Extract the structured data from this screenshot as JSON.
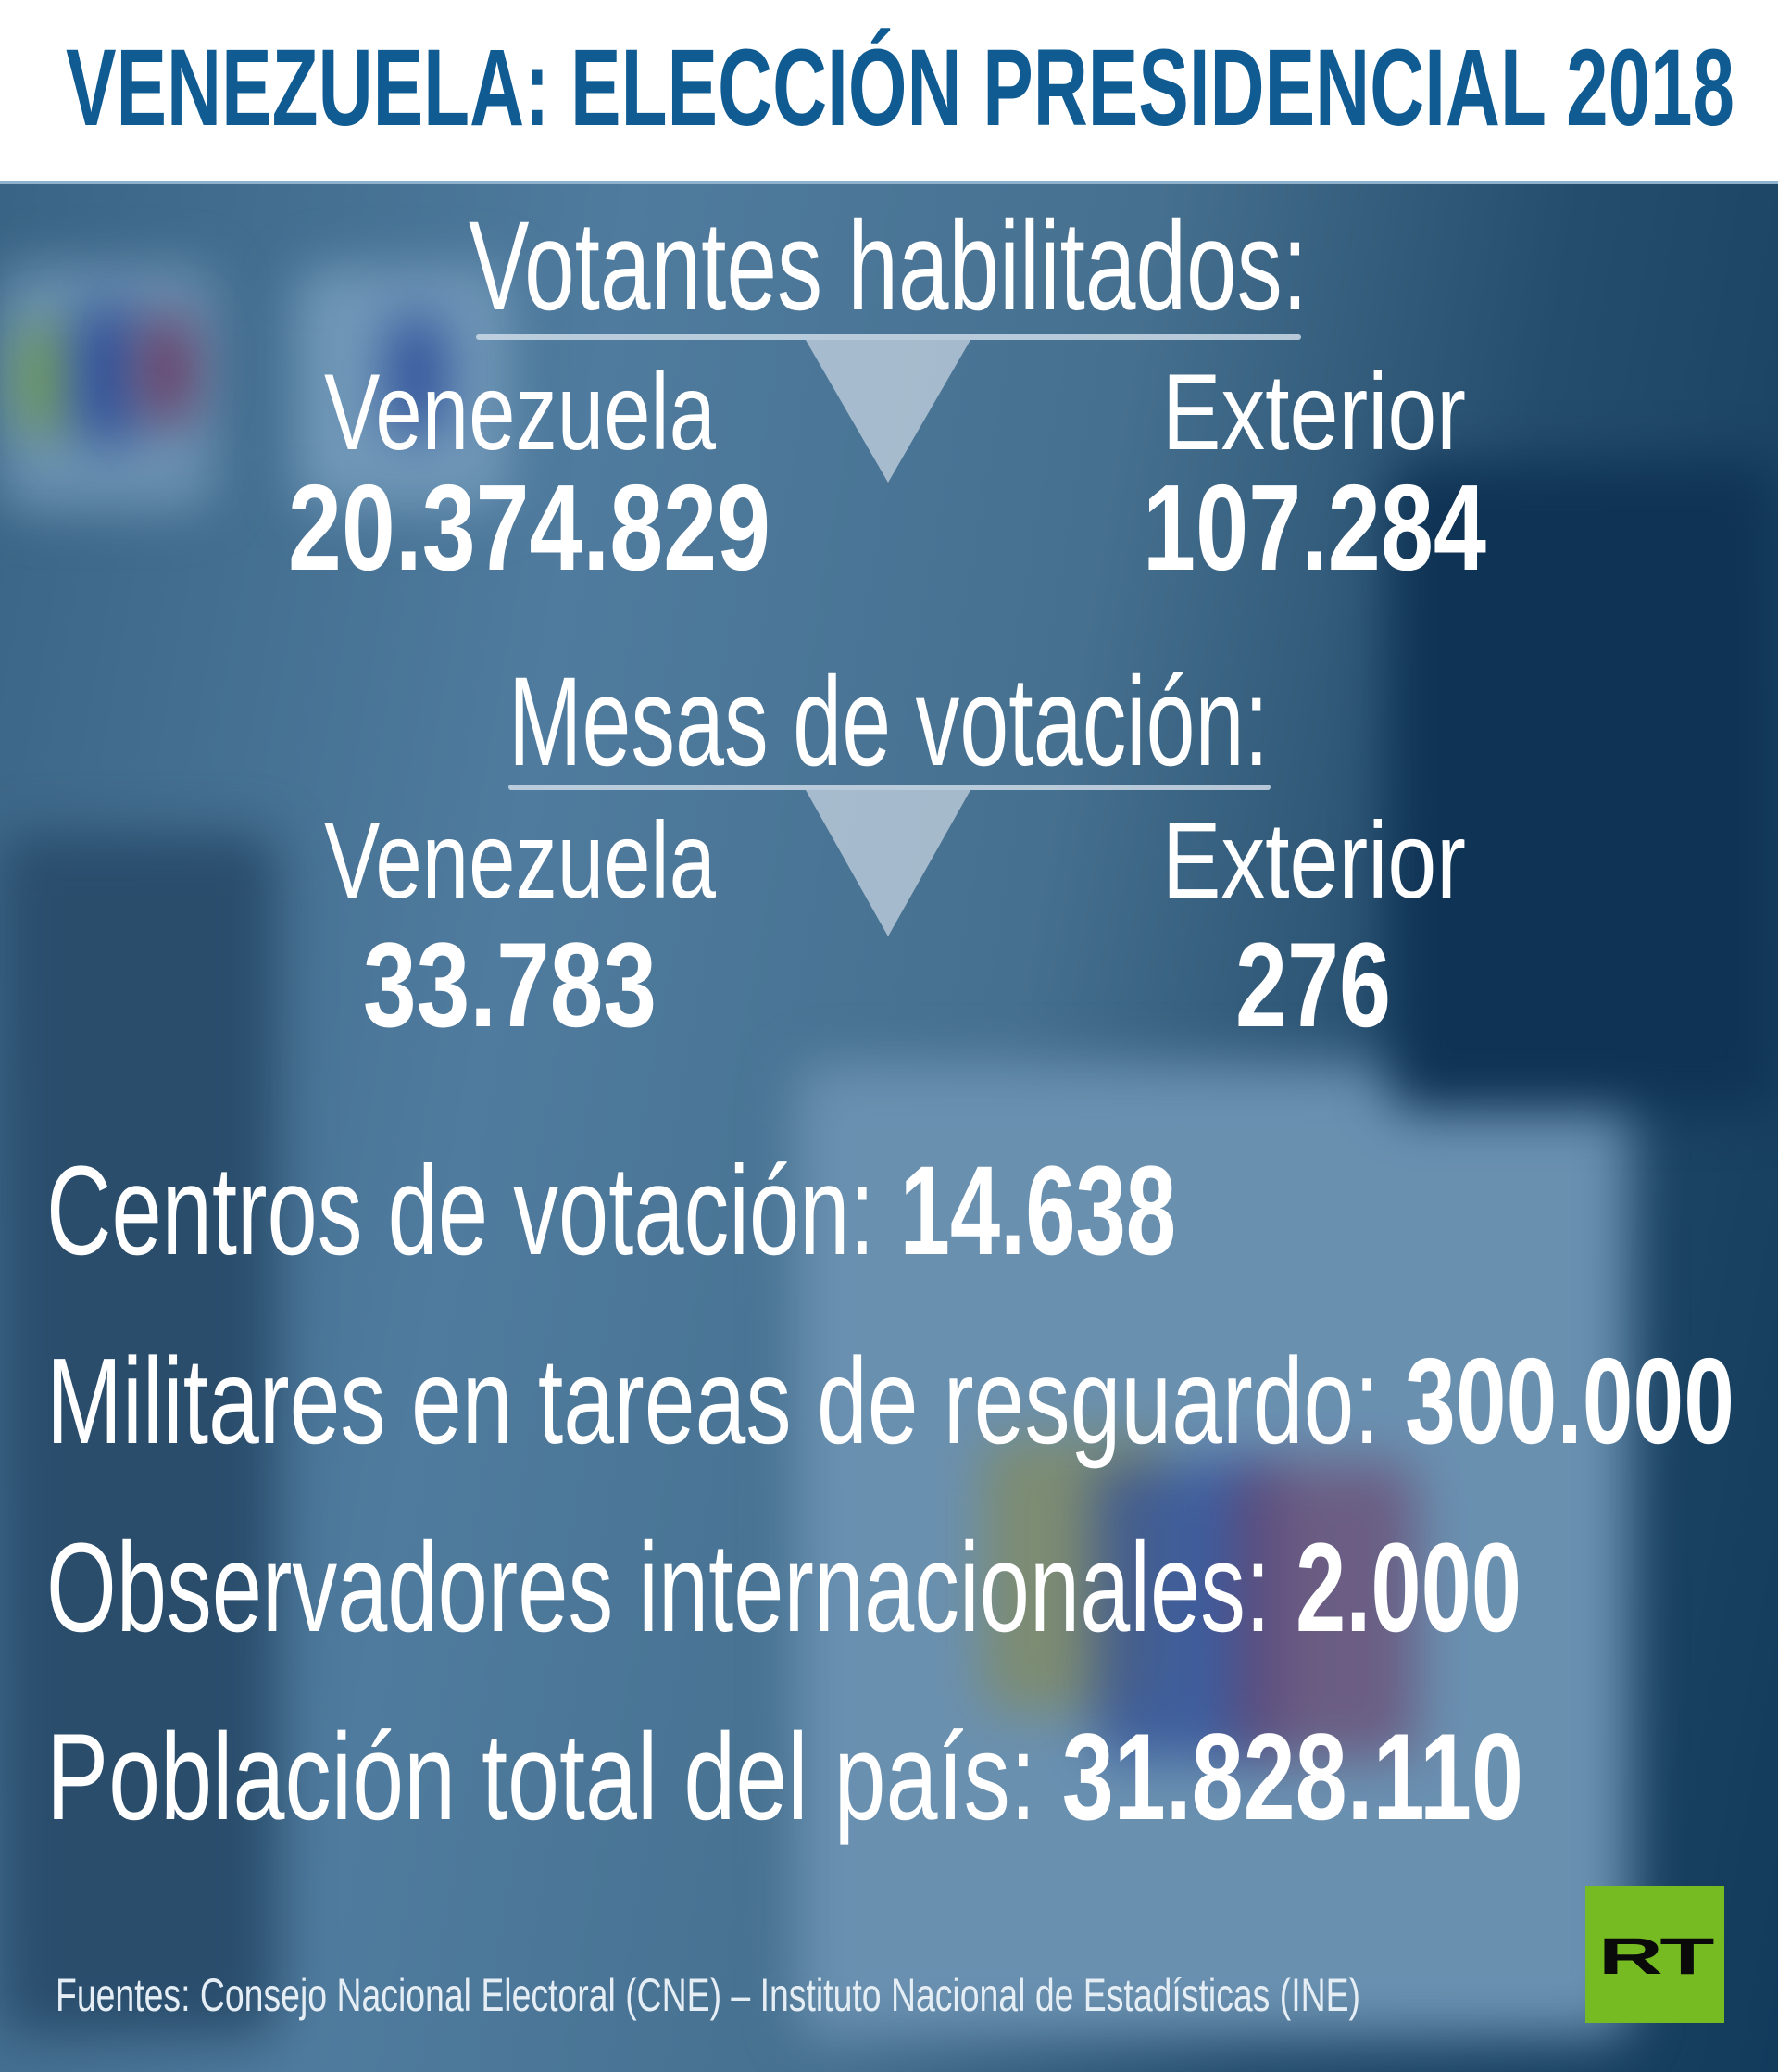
{
  "header": {
    "title": "VENEZUELA: ELECCIÓN PRESIDENCIAL 2018",
    "title_color": "#0f5b92"
  },
  "votantes": {
    "heading": "Votantes habilitados:",
    "venezuela_label": "Venezuela",
    "venezuela_value": "20.374.829",
    "exterior_label": "Exterior",
    "exterior_value": "107.284"
  },
  "mesas": {
    "heading": "Mesas de votación:",
    "venezuela_label": "Venezuela",
    "venezuela_value": "33.783",
    "exterior_label": "Exterior",
    "exterior_value": "276"
  },
  "stats": [
    {
      "label": "Centros de votación: ",
      "value": "14.638"
    },
    {
      "label": "Militares en tareas de resguardo: ",
      "value": "300.000"
    },
    {
      "label": "Observadores internacionales: ",
      "value": "2.000"
    },
    {
      "label": "Población total del país: ",
      "value": "31.828.110"
    }
  ],
  "footer": {
    "sources": "Fuentes: Consejo Nacional Electoral (CNE) – Instituto Nacional de Estadísticas (INE)"
  },
  "logo": {
    "text": "RT",
    "color": "#76bb22"
  }
}
